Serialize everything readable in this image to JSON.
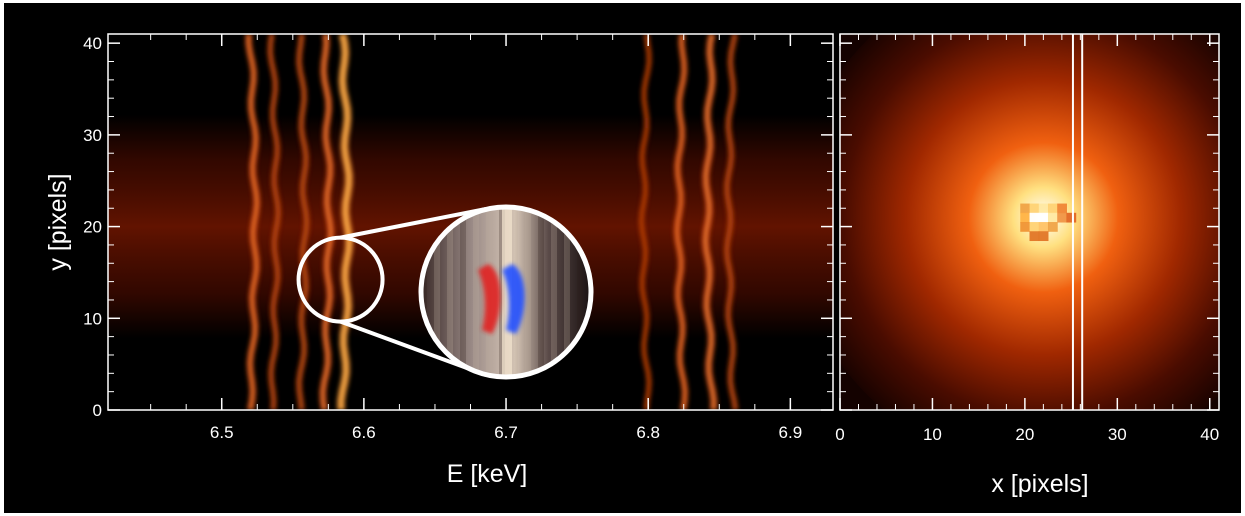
{
  "colors": {
    "background": "#000000",
    "axis": "#ffffff",
    "heat_low": "#2a0500",
    "heat_mid": "#c83a00",
    "heat_high": "#ffd060",
    "redshift_lobe": "#e02020",
    "blueshift_lobe": "#2050ff"
  },
  "chart_data": [
    {
      "type": "heatmap",
      "xlabel": "E [keV]",
      "ylabel": "y [pixels]",
      "xlim": [
        6.42,
        6.93
      ],
      "ylim": [
        0,
        41
      ],
      "x_ticks": [
        "6.5",
        "6.6",
        "6.7",
        "6.8",
        "6.9"
      ],
      "x_tick_values": [
        6.5,
        6.6,
        6.7,
        6.8,
        6.9
      ],
      "y_ticks": [
        "0",
        "10",
        "20",
        "30",
        "40"
      ],
      "y_tick_values": [
        0,
        10,
        20,
        30,
        40
      ],
      "lines": [
        {
          "energy": 6.52,
          "intensity": 0.7
        },
        {
          "energy": 6.535,
          "intensity": 0.55
        },
        {
          "energy": 6.555,
          "intensity": 0.6
        },
        {
          "energy": 6.572,
          "intensity": 0.75
        },
        {
          "energy": 6.585,
          "intensity": 1.0
        },
        {
          "energy": 6.8,
          "intensity": 0.4
        },
        {
          "energy": 6.825,
          "intensity": 0.65
        },
        {
          "energy": 6.845,
          "intensity": 0.8
        },
        {
          "energy": 6.86,
          "intensity": 0.55
        }
      ],
      "bright_band": [
        10,
        30
      ],
      "zoom_source": {
        "energy": 6.585,
        "y": 14
      },
      "zoom_lobes": [
        {
          "name": "red",
          "offset": -0.6
        },
        {
          "name": "blue",
          "offset": 0.6
        }
      ]
    },
    {
      "type": "heatmap",
      "xlabel": "x [pixels]",
      "xlim": [
        0,
        41
      ],
      "ylim": [
        0,
        41
      ],
      "x_ticks": [
        "0",
        "10",
        "20",
        "30",
        "40"
      ],
      "x_tick_values": [
        0,
        10,
        20,
        30,
        40
      ],
      "peak": {
        "x": 22,
        "y": 21
      },
      "marker_lines_x": [
        25.2,
        26.2
      ]
    }
  ]
}
